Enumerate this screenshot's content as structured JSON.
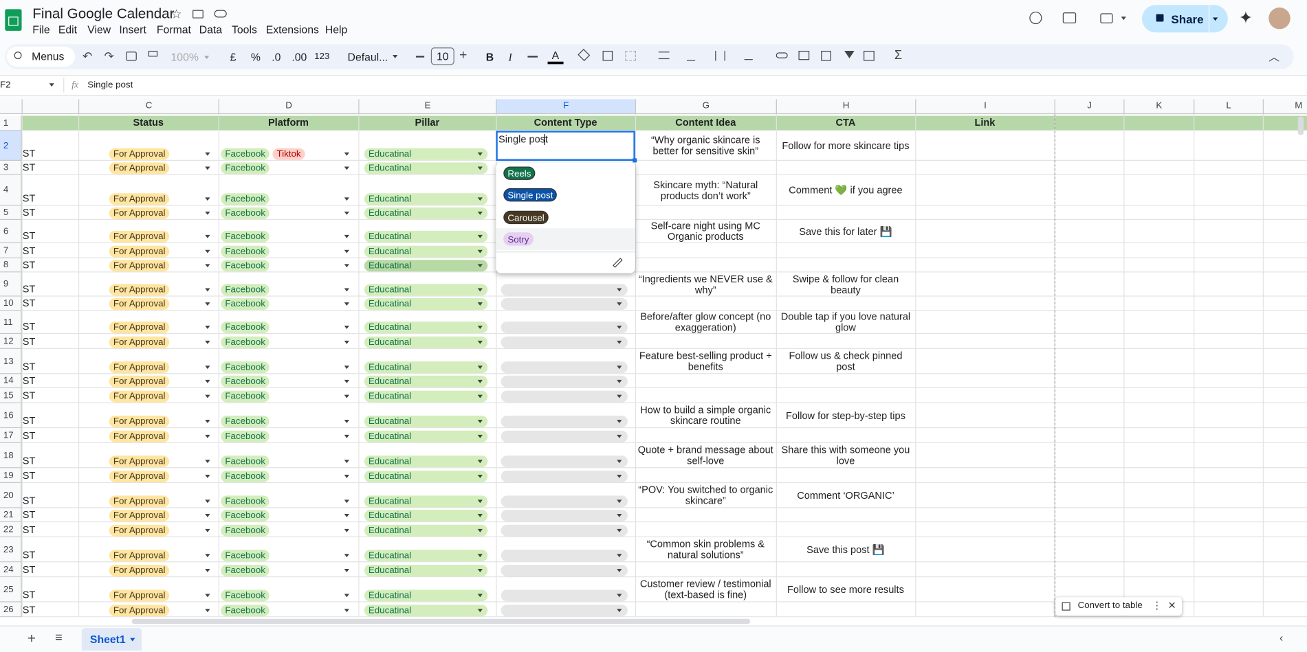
{
  "app": {
    "title": "Final  Google Calendar",
    "menu": [
      "File",
      "Edit",
      "View",
      "Insert",
      "Format",
      "Data",
      "Tools",
      "Extensions",
      "Help"
    ],
    "share": "Share"
  },
  "toolbar": {
    "search": "Menus",
    "zoom": "100%",
    "currency": "£",
    "percent": "%",
    "decrease_decimal": ".0",
    "increase_decimal": ".00",
    "number_format": "123",
    "font": "Defaul...",
    "font_size": "10",
    "bold": "B",
    "italic": "I",
    "text_color": "A"
  },
  "formula_bar": {
    "cell": "F2",
    "content": "Single post"
  },
  "column_letters": [
    "C",
    "D",
    "E",
    "F",
    "G",
    "H",
    "I",
    "J",
    "K",
    "L",
    "M"
  ],
  "row_numbers": [
    1,
    2,
    3,
    4,
    5,
    6,
    7,
    8,
    9,
    10,
    11,
    12,
    13,
    14,
    15,
    16,
    17,
    18,
    19,
    20,
    21,
    22,
    23,
    24,
    25,
    26
  ],
  "header_row": [
    "Status",
    "Platform",
    "Pillar",
    "Content Type",
    "Content Idea",
    "CTA",
    "Link"
  ],
  "rows": [
    {
      "a": "ST",
      "status": "For Approval",
      "platform": [
        "Facebook",
        "Tiktok"
      ],
      "pillar": "Educatinal",
      "idea": "“Why organic skincare is better for sensitive skin”",
      "cta": "Follow for more skincare tips"
    },
    {
      "a": "ST",
      "status": "For Approval",
      "platform": [
        "Facebook"
      ],
      "pillar": "Educatinal"
    },
    {
      "a": "ST",
      "status": "For Approval",
      "platform": [
        "Facebook"
      ],
      "pillar": "Educatinal",
      "idea": "Skincare myth: “Natural products don’t work”",
      "cta": "Comment 💚 if you agree"
    },
    {
      "a": "ST",
      "status": "For Approval",
      "platform": [
        "Facebook"
      ],
      "pillar": "Educatinal"
    },
    {
      "a": "ST",
      "status": "For Approval",
      "platform": [
        "Facebook"
      ],
      "pillar": "Educatinal",
      "idea": "Self-care night using MC Organic products",
      "cta": "Save this for later 💾"
    },
    {
      "a": "ST",
      "status": "For Approval",
      "platform": [
        "Facebook"
      ],
      "pillar": "Educatinal"
    },
    {
      "a": "ST",
      "status": "For Approval",
      "platform": [
        "Facebook"
      ],
      "pillar": "Educatinal"
    },
    {
      "a": "ST",
      "status": "For Approval",
      "platform": [
        "Facebook"
      ],
      "pillar": "Educatinal",
      "idea": "“Ingredients we NEVER use & why”",
      "cta": "Swipe & follow for clean beauty"
    },
    {
      "a": "ST",
      "status": "For Approval",
      "platform": [
        "Facebook"
      ],
      "pillar": "Educatinal"
    },
    {
      "a": "ST",
      "status": "For Approval",
      "platform": [
        "Facebook"
      ],
      "pillar": "Educatinal",
      "idea": "Before/after glow concept (no exaggeration)",
      "cta": "Double tap if you love natural glow"
    },
    {
      "a": "ST",
      "status": "For Approval",
      "platform": [
        "Facebook"
      ],
      "pillar": "Educatinal"
    },
    {
      "a": "ST",
      "status": "For Approval",
      "platform": [
        "Facebook"
      ],
      "pillar": "Educatinal",
      "idea": "Feature best-selling product + benefits",
      "cta": "Follow us & check pinned post"
    },
    {
      "a": "ST",
      "status": "For Approval",
      "platform": [
        "Facebook"
      ],
      "pillar": "Educatinal"
    },
    {
      "a": "ST",
      "status": "For Approval",
      "platform": [
        "Facebook"
      ],
      "pillar": "Educatinal"
    },
    {
      "a": "ST",
      "status": "For Approval",
      "platform": [
        "Facebook"
      ],
      "pillar": "Educatinal",
      "idea": "How to build a simple organic skincare routine",
      "cta": "Follow for step-by-step tips"
    },
    {
      "a": "ST",
      "status": "For Approval",
      "platform": [
        "Facebook"
      ],
      "pillar": "Educatinal"
    },
    {
      "a": "ST",
      "status": "For Approval",
      "platform": [
        "Facebook"
      ],
      "pillar": "Educatinal",
      "idea": "Quote + brand message about self-love",
      "cta": "Share this with someone you love"
    },
    {
      "a": "ST",
      "status": "For Approval",
      "platform": [
        "Facebook"
      ],
      "pillar": "Educatinal"
    },
    {
      "a": "ST",
      "status": "For Approval",
      "platform": [
        "Facebook"
      ],
      "pillar": "Educatinal",
      "idea": "“POV: You switched to organic skincare”",
      "cta": "Comment ‘ORGANIC’"
    },
    {
      "a": "ST",
      "status": "For Approval",
      "platform": [
        "Facebook"
      ],
      "pillar": "Educatinal"
    },
    {
      "a": "ST",
      "status": "For Approval",
      "platform": [
        "Facebook"
      ],
      "pillar": "Educatinal"
    },
    {
      "a": "ST",
      "status": "For Approval",
      "platform": [
        "Facebook"
      ],
      "pillar": "Educatinal",
      "idea": "“Common skin problems & natural solutions”",
      "cta": "Save this post 💾"
    },
    {
      "a": "ST",
      "status": "For Approval",
      "platform": [
        "Facebook"
      ],
      "pillar": "Educatinal"
    },
    {
      "a": "ST",
      "status": "For Approval",
      "platform": [
        "Facebook"
      ],
      "pillar": "Educatinal",
      "idea": "Customer review / testimonial (text-based is fine)",
      "cta": "Follow to see more results"
    },
    {
      "a": "ST",
      "status": "For Approval",
      "platform": [
        "Facebook"
      ],
      "pillar": "Educatinal"
    }
  ],
  "dropdown_options": [
    "Reels",
    "Single post",
    "Carousel",
    "Sotry"
  ],
  "convert_chip": "Convert to table",
  "sheet_tab": "Sheet1"
}
